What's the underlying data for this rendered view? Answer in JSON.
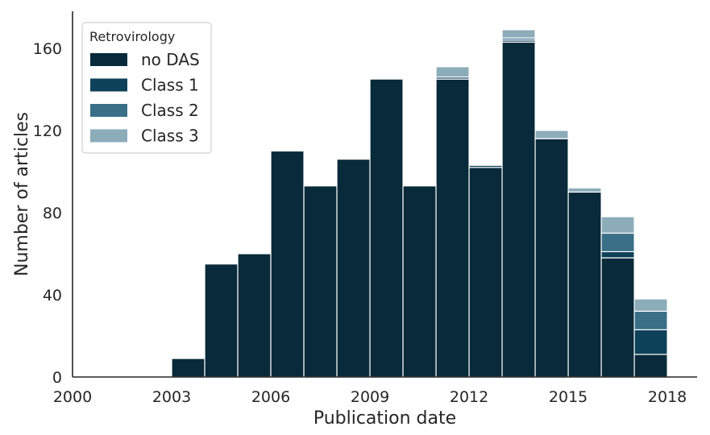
{
  "chart_data": {
    "type": "bar",
    "stacked": true,
    "xlabel": "Publication date",
    "ylabel": "Number of articles",
    "xlim": [
      2000,
      2018.9
    ],
    "ylim": [
      0,
      178
    ],
    "xticks": [
      2000,
      2003,
      2006,
      2009,
      2012,
      2015,
      2018
    ],
    "yticks": [
      0,
      40,
      80,
      120,
      160
    ],
    "bins": [
      2003.5,
      2004.5,
      2005.5,
      2006.5,
      2007.5,
      2008.5,
      2009.5,
      2010.5,
      2011.5,
      2012.5,
      2013.5,
      2014.5,
      2015.5,
      2016.5,
      2017.5
    ],
    "bin_width": 1,
    "series": [
      {
        "name": "no DAS",
        "color": "#082a3a",
        "values": [
          9,
          55,
          60,
          110,
          93,
          106,
          145,
          93,
          145,
          102,
          163,
          116,
          90,
          58,
          11
        ]
      },
      {
        "name": "Class 1",
        "color": "#0e425a",
        "values": [
          0,
          0,
          0,
          0,
          0,
          0,
          0,
          0,
          1,
          1,
          1,
          0,
          0,
          3,
          12
        ]
      },
      {
        "name": "Class 2",
        "color": "#396f87",
        "values": [
          0,
          0,
          0,
          0,
          0,
          0,
          0,
          0,
          0,
          0,
          1,
          0,
          0,
          9,
          9
        ]
      },
      {
        "name": "Class 3",
        "color": "#8dacba",
        "values": [
          0,
          0,
          0,
          0,
          0,
          0,
          0,
          0,
          5,
          0,
          4,
          4,
          2,
          8,
          6
        ]
      }
    ],
    "legend": {
      "title": "Retrovirology",
      "position": "top-left"
    },
    "grid": false
  }
}
